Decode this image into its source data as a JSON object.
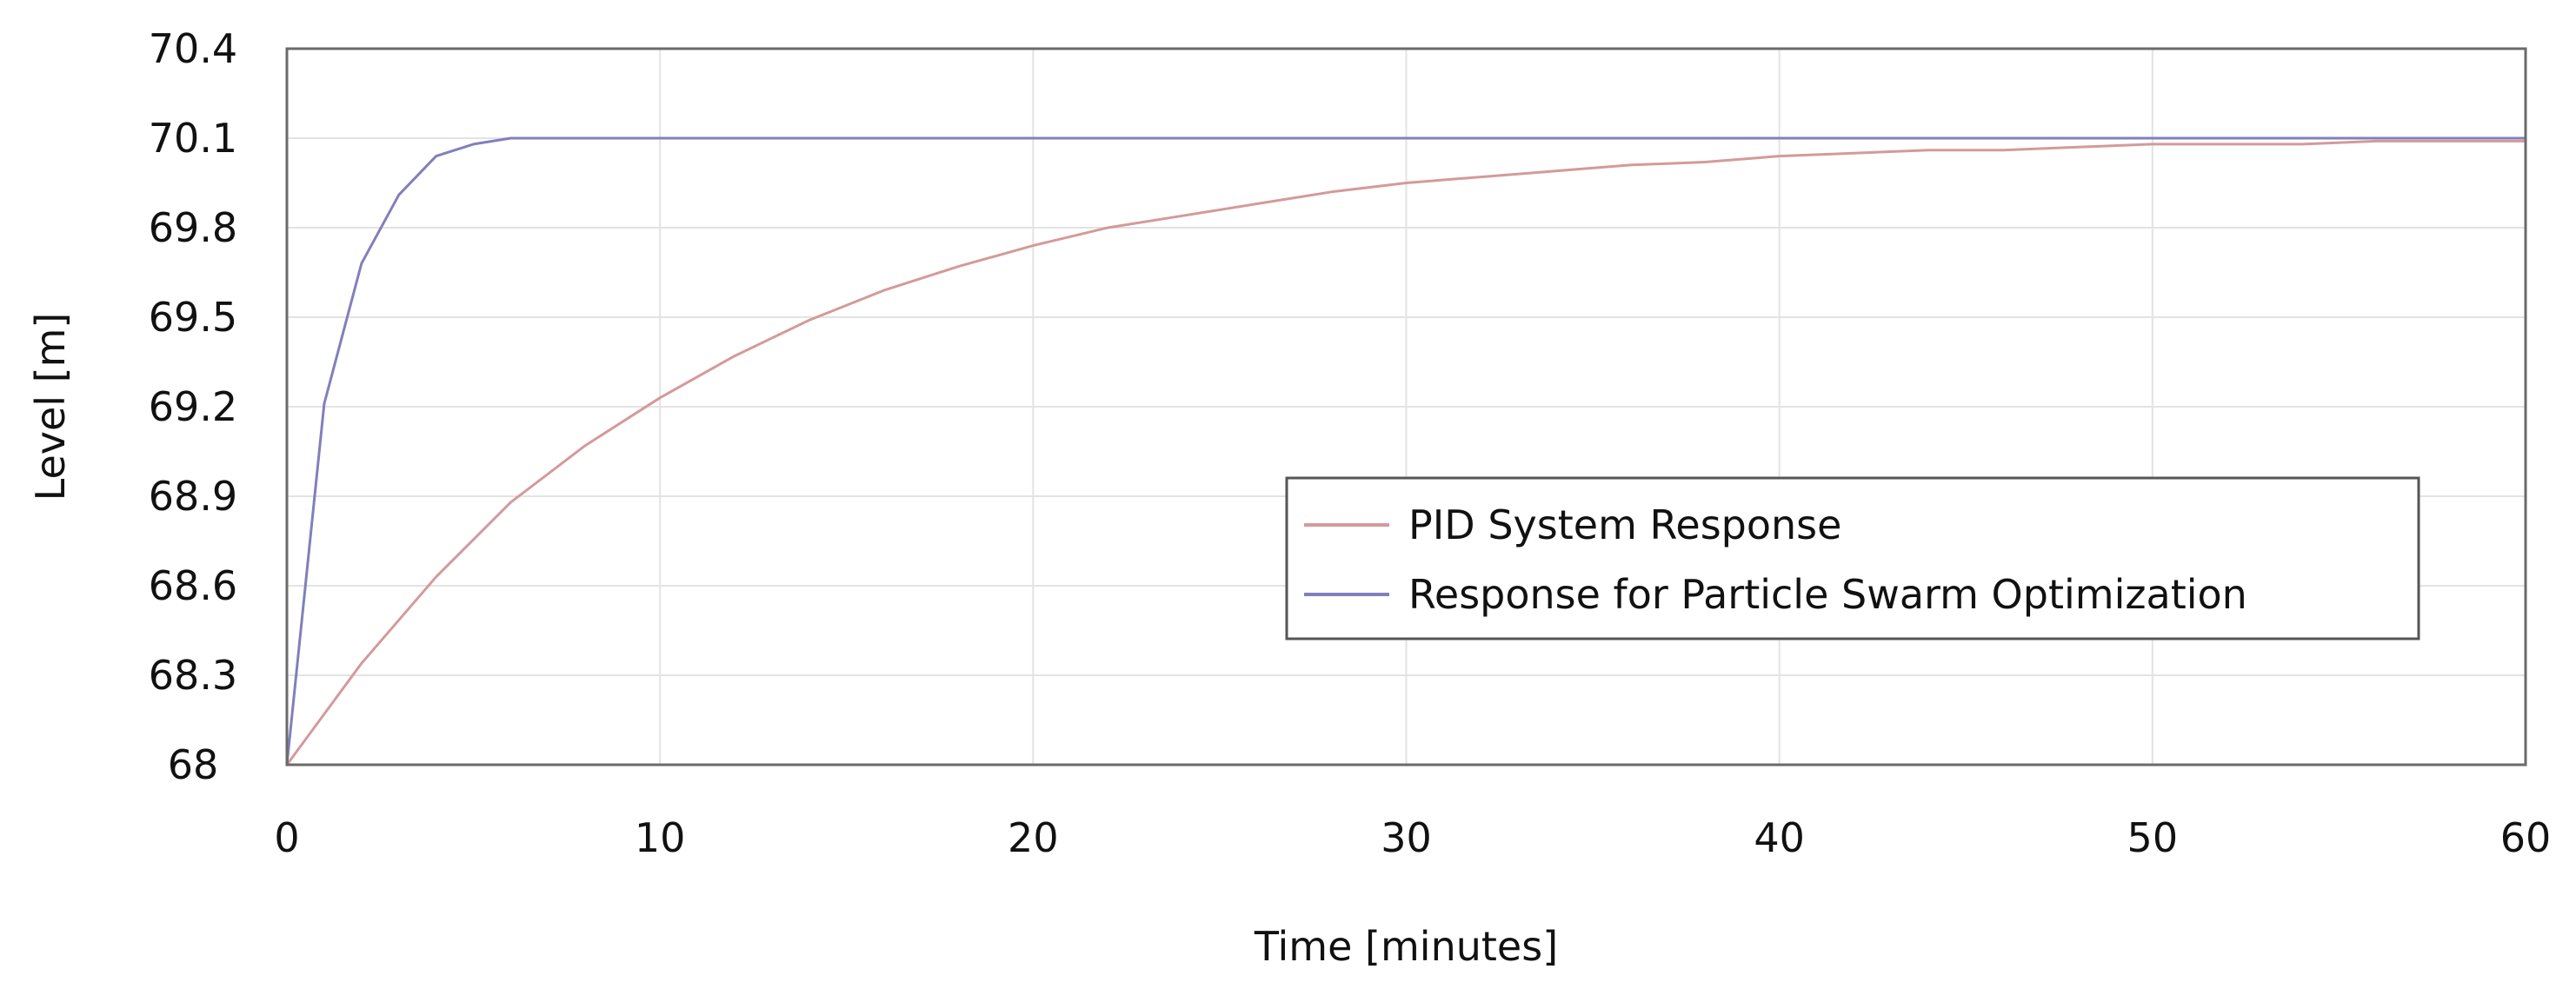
{
  "chart_data": {
    "type": "line",
    "title": "",
    "xlabel": "Time [minutes]",
    "ylabel": "Level [m]",
    "xlim": [
      0,
      60
    ],
    "ylim": [
      68,
      70.4
    ],
    "xticks": [
      0,
      10,
      20,
      30,
      40,
      50,
      60
    ],
    "yticks": [
      68,
      68.3,
      68.6,
      68.9,
      69.2,
      69.5,
      69.8,
      70.1,
      70.4
    ],
    "xtick_labels": [
      "0",
      "10",
      "20",
      "30",
      "40",
      "50",
      "60"
    ],
    "ytick_labels": [
      "68",
      "68.3",
      "68.6",
      "68.9",
      "69.2",
      "69.5",
      "69.8",
      "70.1",
      "70.4"
    ],
    "grid": true,
    "legend_position": "center-right",
    "series": [
      {
        "name": "PID System Response",
        "color": "#d49a9a",
        "x": [
          0,
          2,
          4,
          6,
          8,
          10,
          12,
          14,
          16,
          18,
          20,
          22,
          24,
          26,
          28,
          30,
          32,
          34,
          36,
          38,
          40,
          42,
          44,
          46,
          48,
          50,
          52,
          54,
          56,
          58,
          60
        ],
        "y": [
          68.0,
          68.34,
          68.63,
          68.88,
          69.07,
          69.23,
          69.37,
          69.49,
          69.59,
          69.67,
          69.74,
          69.8,
          69.84,
          69.88,
          69.92,
          69.95,
          69.97,
          69.99,
          70.01,
          70.02,
          70.04,
          70.05,
          70.06,
          70.06,
          70.07,
          70.08,
          70.08,
          70.08,
          70.09,
          70.09,
          70.09
        ]
      },
      {
        "name": "Response for Particle Swarm Optimization",
        "color": "#8080bb",
        "x": [
          0,
          1,
          2,
          3,
          4,
          5,
          6,
          7,
          8,
          10,
          15,
          20,
          30,
          40,
          50,
          60
        ],
        "y": [
          68.0,
          69.21,
          69.68,
          69.91,
          70.04,
          70.08,
          70.1,
          70.1,
          70.1,
          70.1,
          70.1,
          70.1,
          70.1,
          70.1,
          70.1,
          70.1
        ]
      }
    ]
  }
}
